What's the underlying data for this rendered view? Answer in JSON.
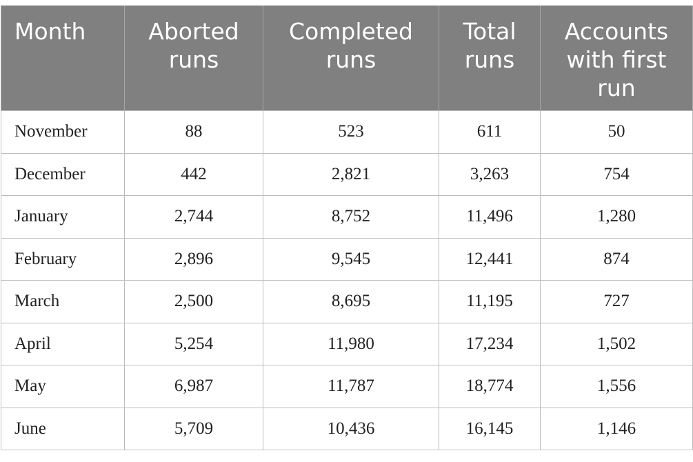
{
  "table": {
    "headers": [
      "Month",
      "Aborted runs",
      "Completed runs",
      "Total runs",
      "Accounts with first run"
    ],
    "rows": [
      [
        "November",
        "88",
        "523",
        "611",
        "50"
      ],
      [
        "December",
        "442",
        "2,821",
        "3,263",
        "754"
      ],
      [
        "January",
        "2,744",
        "8,752",
        "11,496",
        "1,280"
      ],
      [
        "February",
        "2,896",
        "9,545",
        "12,441",
        "874"
      ],
      [
        "March",
        "2,500",
        "8,695",
        "11,195",
        "727"
      ],
      [
        "April",
        "5,254",
        "11,980",
        "17,234",
        "1,502"
      ],
      [
        "May",
        "6,987",
        "11,787",
        "18,774",
        "1,556"
      ],
      [
        "June",
        "5,709",
        "10,436",
        "16,145",
        "1,146"
      ]
    ]
  },
  "colors": {
    "header_background": "#808080",
    "header_text": "#ffffff",
    "grid_line": "#bdbdbd"
  }
}
